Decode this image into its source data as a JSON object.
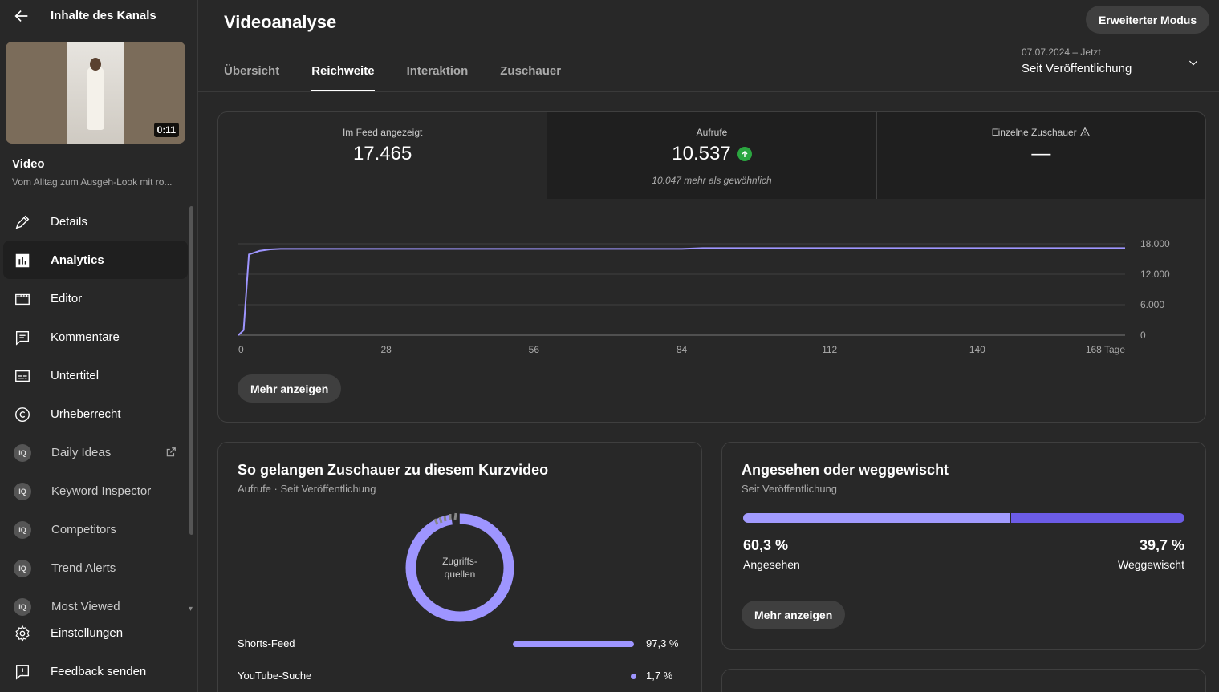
{
  "sidebar": {
    "header_title": "Inhalte des Kanals",
    "video_duration": "0:11",
    "video_label": "Video",
    "video_title": "Vom Alltag zum Ausgeh-Look mit ro...",
    "items": [
      {
        "label": "Details",
        "icon": "pencil-icon"
      },
      {
        "label": "Analytics",
        "icon": "analytics-icon"
      },
      {
        "label": "Editor",
        "icon": "film-icon"
      },
      {
        "label": "Kommentare",
        "icon": "comment-icon"
      },
      {
        "label": "Untertitel",
        "icon": "subtitles-icon"
      },
      {
        "label": "Urheberrecht",
        "icon": "copyright-icon"
      },
      {
        "label": "Daily Ideas",
        "icon": "vidiq-icon"
      },
      {
        "label": "Keyword Inspector",
        "icon": "vidiq-icon"
      },
      {
        "label": "Competitors",
        "icon": "vidiq-icon"
      },
      {
        "label": "Trend Alerts",
        "icon": "vidiq-icon"
      },
      {
        "label": "Most Viewed",
        "icon": "vidiq-icon"
      }
    ],
    "bottom": [
      {
        "label": "Einstellungen",
        "icon": "gear-icon"
      },
      {
        "label": "Feedback senden",
        "icon": "feedback-icon"
      }
    ],
    "ext_badge": "IQ"
  },
  "header": {
    "title": "Videoanalyse",
    "advanced_mode": "Erweiterter Modus",
    "tabs": [
      "Übersicht",
      "Reichweite",
      "Interaktion",
      "Zuschauer"
    ],
    "active_tab": "Reichweite",
    "date_range": "07.07.2024 – Jetzt",
    "date_label": "Seit Veröffentlichung"
  },
  "metrics": [
    {
      "title": "Im Feed angezeigt",
      "value": "17.465"
    },
    {
      "title": "Aufrufe",
      "value": "10.537",
      "note": "10.047 mehr als gewöhnlich"
    },
    {
      "title": "Einzelne Zuschauer",
      "value": "—"
    }
  ],
  "chart_data": {
    "type": "line",
    "x": [
      0,
      1,
      2,
      4,
      6,
      8,
      28,
      56,
      84,
      88,
      112,
      140,
      168
    ],
    "y": [
      0,
      1000,
      15900,
      16600,
      16900,
      17000,
      17000,
      17000,
      17000,
      17150,
      17150,
      17150,
      17150
    ],
    "xticks": [
      "0",
      "28",
      "56",
      "84",
      "112",
      "140",
      "168 Tage"
    ],
    "yticks": [
      "18.000",
      "12.000",
      "6.000",
      "0"
    ],
    "xlim": [
      0,
      168
    ],
    "ylim": [
      0,
      18000
    ],
    "color": "#9e95ff",
    "grid": true
  },
  "more_label": "Mehr anzeigen",
  "traffic": {
    "title": "So gelangen Zuschauer zu diesem Kurzvideo",
    "subtitle": "Aufrufe · Seit Veröffentlichung",
    "donut_label": "Zugriffs-\nquellen",
    "sources": [
      {
        "name": "Shorts-Feed",
        "pct": "97,3 %",
        "value": 97.3
      },
      {
        "name": "YouTube-Suche",
        "pct": "1,7 %",
        "value": 1.7
      }
    ]
  },
  "swipe": {
    "title": "Angesehen oder weggewischt",
    "subtitle": "Seit Veröffentlichung",
    "viewed_pct": "60,3 %",
    "viewed_label": "Angesehen",
    "viewed_value": 60.3,
    "swiped_pct": "39,7 %",
    "swiped_label": "Weggewischt",
    "swiped_value": 39.7
  }
}
